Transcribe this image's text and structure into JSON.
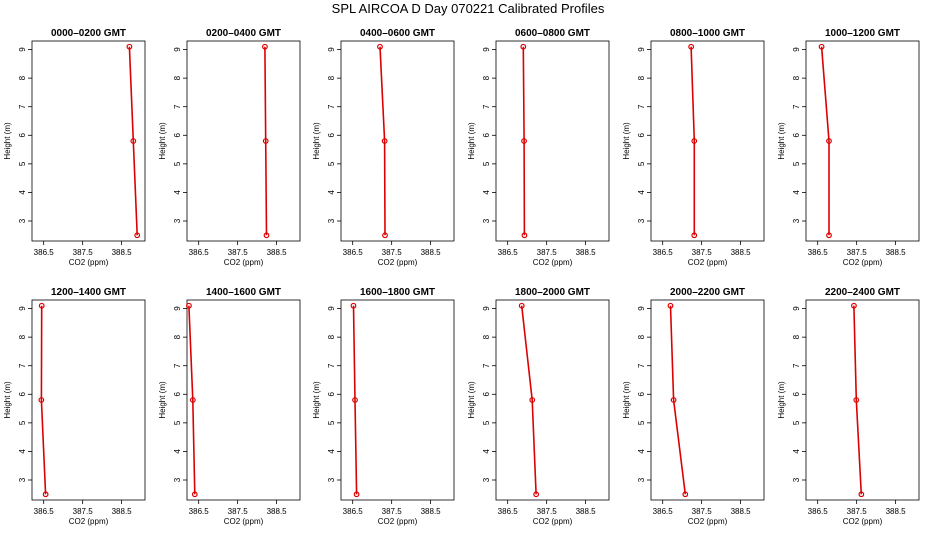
{
  "title": "SPL AIRCOA D  Day 070221  Calibrated Profiles",
  "colors": {
    "series": "#dd0000",
    "axes": "#000000"
  },
  "chart_data": {
    "type": "line",
    "layout": "2x6 small multiples",
    "xlabel": "CO2 (ppm)",
    "ylabel": "Height (m)",
    "xlim": [
      386.2,
      389.1
    ],
    "ylim": [
      2.3,
      9.3
    ],
    "xticks": [
      386.5,
      387.5,
      388.5
    ],
    "xtick_labels": [
      "386.5",
      "387.5",
      "388.5"
    ],
    "yticks": [
      3,
      4,
      5,
      6,
      7,
      8,
      9
    ],
    "yticks_labels": [
      "3",
      "4",
      "5",
      "6",
      "7",
      "8",
      "9"
    ],
    "heights": [
      9.1,
      5.8,
      2.5
    ],
    "panels": [
      {
        "title": "0000–0200 GMT",
        "values": [
          388.7,
          388.8,
          388.9
        ]
      },
      {
        "title": "0200–0400 GMT",
        "values": [
          388.2,
          388.22,
          388.24
        ]
      },
      {
        "title": "0400–0600 GMT",
        "values": [
          387.2,
          387.32,
          387.33
        ]
      },
      {
        "title": "0600–0800 GMT",
        "values": [
          386.9,
          386.92,
          386.93
        ]
      },
      {
        "title": "0800–1000 GMT",
        "values": [
          387.23,
          387.31,
          387.31
        ]
      },
      {
        "title": "1000–1200 GMT",
        "values": [
          386.6,
          386.79,
          386.79
        ]
      },
      {
        "title": "1200–1400 GMT",
        "values": [
          386.45,
          386.44,
          386.55
        ]
      },
      {
        "title": "1400–1600 GMT",
        "values": [
          386.25,
          386.35,
          386.4
        ]
      },
      {
        "title": "1600–1800 GMT",
        "values": [
          386.52,
          386.56,
          386.6
        ]
      },
      {
        "title": "1800–2000 GMT",
        "values": [
          386.86,
          387.13,
          387.23
        ]
      },
      {
        "title": "2000–2200 GMT",
        "values": [
          386.7,
          386.78,
          387.08
        ]
      },
      {
        "title": "2200–2400 GMT",
        "values": [
          387.43,
          387.49,
          387.62
        ]
      }
    ]
  }
}
